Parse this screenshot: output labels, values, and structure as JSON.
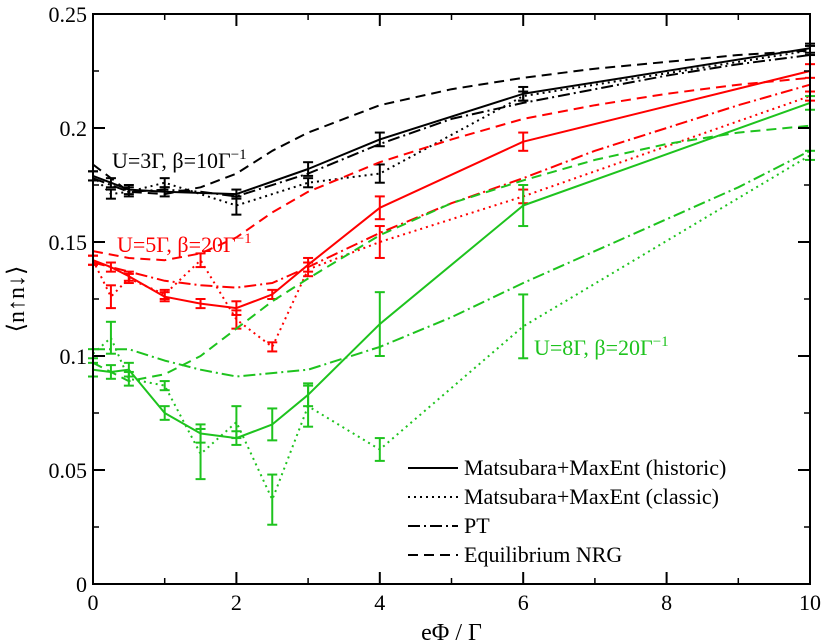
{
  "chart_data": {
    "type": "line",
    "xlabel": "eΦ / Γ",
    "ylabel": "⟨n↑n↓⟩",
    "xlim": [
      0,
      10
    ],
    "ylim": [
      0,
      0.25
    ],
    "xticks": [
      0,
      2,
      4,
      6,
      8,
      10
    ],
    "yticks": [
      0,
      0.05,
      0.1,
      0.15,
      0.2,
      0.25
    ],
    "xtick_labels": [
      "0",
      "2",
      "4",
      "6",
      "8",
      "10"
    ],
    "ytick_labels": [
      "0",
      "0.05",
      "0.1",
      "0.15",
      "0.2",
      "0.25"
    ],
    "minor_x_step": 1,
    "minor_y_step": 0.025,
    "legend_position": "bottom-right",
    "legend": [
      {
        "label": "Matsubara+MaxEnt (historic)",
        "style": "solid"
      },
      {
        "label": "Matsubara+MaxEnt (classic)",
        "style": "dotted"
      },
      {
        "label": "PT",
        "style": "dashdot"
      },
      {
        "label": "Equilibrium NRG",
        "style": "dashed"
      }
    ],
    "groups": [
      {
        "annotation": "U=3Γ, β=10Γ",
        "annotation_sup": "−1",
        "color": "#000000",
        "series": [
          {
            "method": "historic",
            "style": "solid",
            "x": [
              0,
              0.25,
              0.5,
              1,
              2,
              3,
              4,
              6,
              10
            ],
            "y": [
              0.179,
              0.176,
              0.173,
              0.172,
              0.171,
              0.182,
              0.195,
              0.215,
              0.235
            ],
            "err": [
              0.002,
              0.002,
              0.002,
              0.002,
              0.002,
              0.003,
              0.003,
              0.003,
              0.002
            ]
          },
          {
            "method": "classic",
            "style": "dotted",
            "x": [
              0,
              0.25,
              0.5,
              1,
              2,
              3,
              4,
              6,
              10
            ],
            "y": [
              0.179,
              0.171,
              0.172,
              0.176,
              0.166,
              0.176,
              0.18,
              0.214,
              0.234
            ],
            "err": [
              0.002,
              0.002,
              0.002,
              0.002,
              0.004,
              0.002,
              0.004,
              0.002,
              0.002
            ]
          },
          {
            "method": "PT",
            "style": "dashdot",
            "x": [
              0,
              0.5,
              1,
              1.5,
              2,
              3,
              4,
              5,
              6,
              7,
              8,
              9,
              10
            ],
            "y": [
              0.178,
              0.172,
              0.173,
              0.172,
              0.17,
              0.18,
              0.193,
              0.204,
              0.211,
              0.217,
              0.223,
              0.228,
              0.232
            ]
          },
          {
            "method": "NRG",
            "style": "dashed",
            "x": [
              0,
              0.5,
              1,
              1.5,
              2,
              2.5,
              3,
              4,
              5,
              6,
              7,
              8,
              9,
              10
            ],
            "y": [
              0.184,
              0.172,
              0.171,
              0.174,
              0.18,
              0.19,
              0.198,
              0.21,
              0.217,
              0.222,
              0.226,
              0.229,
              0.232,
              0.234
            ]
          }
        ]
      },
      {
        "annotation": "U=5Γ, β=20Γ",
        "annotation_sup": "−1",
        "color": "#ff0000",
        "series": [
          {
            "method": "historic",
            "style": "solid",
            "x": [
              0,
              0.25,
              0.5,
              1,
              1.5,
              2,
              2.5,
              3,
              4,
              6,
              10
            ],
            "y": [
              0.142,
              0.139,
              0.135,
              0.126,
              0.123,
              0.121,
              0.127,
              0.14,
              0.165,
              0.194,
              0.225
            ],
            "err": [
              0.002,
              0.002,
              0.002,
              0.002,
              0.002,
              0.003,
              0.002,
              0.003,
              0.005,
              0.004,
              0.003
            ]
          },
          {
            "method": "classic",
            "style": "dotted",
            "x": [
              0,
              0.25,
              0.5,
              1,
              1.5,
              2,
              2.5,
              3,
              4,
              6,
              10
            ],
            "y": [
              0.142,
              0.126,
              0.134,
              0.127,
              0.142,
              0.116,
              0.104,
              0.138,
              0.15,
              0.17,
              0.214
            ],
            "err": [
              0.002,
              0.005,
              0.002,
              0.002,
              0.003,
              0.004,
              0.002,
              0.003,
              0.007,
              0.003,
              0.002
            ]
          },
          {
            "method": "PT",
            "style": "dashdot",
            "x": [
              0,
              0.5,
              1,
              1.5,
              2,
              2.5,
              3,
              4,
              5,
              6,
              7,
              8,
              9,
              10
            ],
            "y": [
              0.141,
              0.137,
              0.133,
              0.131,
              0.13,
              0.132,
              0.139,
              0.154,
              0.167,
              0.178,
              0.19,
              0.2,
              0.21,
              0.219
            ]
          },
          {
            "method": "NRG",
            "style": "dashed",
            "x": [
              0,
              0.5,
              1,
              1.5,
              2,
              2.5,
              3,
              4,
              5,
              6,
              7,
              8,
              9,
              10
            ],
            "y": [
              0.146,
              0.143,
              0.142,
              0.145,
              0.152,
              0.163,
              0.172,
              0.185,
              0.195,
              0.204,
              0.21,
              0.215,
              0.219,
              0.222
            ]
          }
        ]
      },
      {
        "annotation": "U=8Γ, β=20Γ",
        "annotation_sup": "−1",
        "color": "#1ec31e",
        "series": [
          {
            "method": "historic",
            "style": "solid",
            "x": [
              0,
              0.25,
              0.5,
              1,
              1.5,
              2,
              2.5,
              3,
              4,
              6,
              10
            ],
            "y": [
              0.094,
              0.093,
              0.094,
              0.075,
              0.066,
              0.064,
              0.07,
              0.083,
              0.114,
              0.166,
              0.211
            ],
            "err": [
              0.003,
              0.003,
              0.003,
              0.003,
              0.004,
              0.003,
              0.007,
              0.005,
              0.014,
              0.009,
              0.003
            ]
          },
          {
            "method": "classic",
            "style": "dotted",
            "x": [
              0,
              0.25,
              0.5,
              1,
              1.5,
              2,
              2.5,
              3,
              4,
              6,
              10
            ],
            "y": [
              0.101,
              0.108,
              0.09,
              0.087,
              0.057,
              0.071,
              0.037,
              0.078,
              0.059,
              0.113,
              0.188
            ],
            "err": [
              0.002,
              0.007,
              0.003,
              0.002,
              0.011,
              0.007,
              0.011,
              0.009,
              0.005,
              0.014,
              0.002
            ]
          },
          {
            "method": "PT",
            "style": "dashdot",
            "x": [
              0,
              0.5,
              1,
              1.5,
              2,
              3,
              4,
              5,
              6,
              7,
              8,
              9,
              10
            ],
            "y": [
              0.103,
              0.103,
              0.098,
              0.094,
              0.091,
              0.094,
              0.104,
              0.117,
              0.132,
              0.146,
              0.16,
              0.174,
              0.19
            ]
          },
          {
            "method": "NRG",
            "style": "dashed",
            "x": [
              0,
              0.5,
              1,
              1.5,
              2,
              2.5,
              3,
              4,
              5,
              6,
              7,
              8,
              9,
              10
            ],
            "y": [
              0.097,
              0.089,
              0.092,
              0.1,
              0.112,
              0.124,
              0.134,
              0.153,
              0.167,
              0.177,
              0.186,
              0.193,
              0.198,
              0.201
            ]
          }
        ]
      }
    ]
  }
}
